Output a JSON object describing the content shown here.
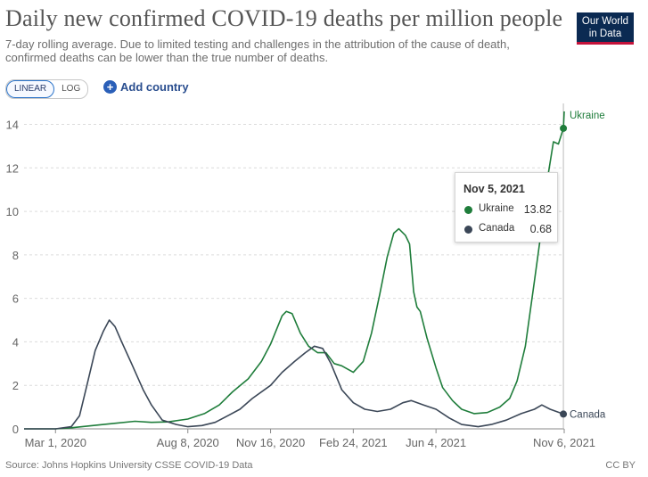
{
  "title": "Daily new confirmed COVID-19 deaths per million people",
  "subtitle": "7-day rolling average. Due to limited testing and challenges in the attribution of the cause of death, confirmed deaths can be lower than the true number of deaths.",
  "logo": {
    "line1": "Our World",
    "line2": "in Data"
  },
  "controls": {
    "linear_label": "LINEAR",
    "log_label": "LOG",
    "active_scale": "linear",
    "add_country_label": "Add country",
    "add_icon": "plus-circle-icon"
  },
  "tooltip": {
    "date": "Nov 5, 2021",
    "rows": [
      {
        "name": "Ukraine",
        "value": "13.82"
      },
      {
        "name": "Canada",
        "value": "0.68"
      }
    ]
  },
  "footer": {
    "source": "Source: Johns Hopkins University CSSE COVID-19 Data",
    "license": "CC BY"
  },
  "chart_data": {
    "type": "line",
    "title": "Daily new confirmed COVID-19 deaths per million people",
    "ylim": [
      0,
      14.8
    ],
    "yticks": [
      0,
      2,
      4,
      6,
      8,
      10,
      12,
      14
    ],
    "xlim": [
      "2020-01-23",
      "2021-11-06"
    ],
    "xticks": [
      {
        "date": "2020-03-01",
        "label": "Mar 1, 2020"
      },
      {
        "date": "2020-08-08",
        "label": "Aug 8, 2020"
      },
      {
        "date": "2020-11-16",
        "label": "Nov 16, 2020"
      },
      {
        "date": "2021-02-24",
        "label": "Feb 24, 2021"
      },
      {
        "date": "2021-06-04",
        "label": "Jun 4, 2021"
      },
      {
        "date": "2021-11-06",
        "label": "Nov 6, 2021"
      }
    ],
    "grid": true,
    "legend": "inline-right",
    "series": [
      {
        "name": "Ukraine",
        "color": "#1f7d3b",
        "points": [
          [
            "2020-01-23",
            0
          ],
          [
            "2020-03-01",
            0
          ],
          [
            "2020-03-20",
            0.05
          ],
          [
            "2020-04-15",
            0.15
          ],
          [
            "2020-05-10",
            0.25
          ],
          [
            "2020-06-05",
            0.35
          ],
          [
            "2020-06-25",
            0.3
          ],
          [
            "2020-07-15",
            0.32
          ],
          [
            "2020-08-08",
            0.45
          ],
          [
            "2020-08-28",
            0.7
          ],
          [
            "2020-09-15",
            1.1
          ],
          [
            "2020-10-01",
            1.7
          ],
          [
            "2020-10-20",
            2.3
          ],
          [
            "2020-11-05",
            3.1
          ],
          [
            "2020-11-16",
            3.9
          ],
          [
            "2020-11-30",
            5.2
          ],
          [
            "2020-12-05",
            5.4
          ],
          [
            "2020-12-12",
            5.3
          ],
          [
            "2020-12-22",
            4.4
          ],
          [
            "2021-01-01",
            3.8
          ],
          [
            "2021-01-12",
            3.5
          ],
          [
            "2021-01-22",
            3.5
          ],
          [
            "2021-02-01",
            3.0
          ],
          [
            "2021-02-10",
            2.9
          ],
          [
            "2021-02-24",
            2.6
          ],
          [
            "2021-03-08",
            3.1
          ],
          [
            "2021-03-18",
            4.4
          ],
          [
            "2021-03-28",
            6.2
          ],
          [
            "2021-04-06",
            7.9
          ],
          [
            "2021-04-14",
            9.0
          ],
          [
            "2021-04-20",
            9.2
          ],
          [
            "2021-04-28",
            8.9
          ],
          [
            "2021-05-03",
            8.5
          ],
          [
            "2021-05-08",
            6.3
          ],
          [
            "2021-05-12",
            5.6
          ],
          [
            "2021-05-16",
            5.4
          ],
          [
            "2021-05-24",
            4.2
          ],
          [
            "2021-06-04",
            2.8
          ],
          [
            "2021-06-12",
            1.9
          ],
          [
            "2021-06-24",
            1.3
          ],
          [
            "2021-07-05",
            0.9
          ],
          [
            "2021-07-20",
            0.7
          ],
          [
            "2021-08-05",
            0.75
          ],
          [
            "2021-08-20",
            1.0
          ],
          [
            "2021-09-01",
            1.4
          ],
          [
            "2021-09-10",
            2.2
          ],
          [
            "2021-09-20",
            3.8
          ],
          [
            "2021-10-01",
            6.8
          ],
          [
            "2021-10-10",
            9.3
          ],
          [
            "2021-10-18",
            11.8
          ],
          [
            "2021-10-24",
            13.2
          ],
          [
            "2021-10-30",
            13.1
          ],
          [
            "2021-11-05",
            13.82
          ],
          [
            "2021-11-06",
            14.6
          ]
        ]
      },
      {
        "name": "Canada",
        "color": "#3b4757",
        "points": [
          [
            "2020-01-23",
            0
          ],
          [
            "2020-03-01",
            0
          ],
          [
            "2020-03-20",
            0.1
          ],
          [
            "2020-03-30",
            0.6
          ],
          [
            "2020-04-08",
            2.0
          ],
          [
            "2020-04-18",
            3.6
          ],
          [
            "2020-04-28",
            4.5
          ],
          [
            "2020-05-05",
            5.0
          ],
          [
            "2020-05-12",
            4.7
          ],
          [
            "2020-05-20",
            4.0
          ],
          [
            "2020-06-01",
            3.0
          ],
          [
            "2020-06-15",
            1.8
          ],
          [
            "2020-06-25",
            1.1
          ],
          [
            "2020-07-08",
            0.4
          ],
          [
            "2020-07-25",
            0.2
          ],
          [
            "2020-08-08",
            0.1
          ],
          [
            "2020-08-25",
            0.15
          ],
          [
            "2020-09-10",
            0.3
          ],
          [
            "2020-09-25",
            0.6
          ],
          [
            "2020-10-10",
            0.9
          ],
          [
            "2020-10-25",
            1.4
          ],
          [
            "2020-11-16",
            2.0
          ],
          [
            "2020-11-30",
            2.6
          ],
          [
            "2020-12-15",
            3.1
          ],
          [
            "2020-12-28",
            3.5
          ],
          [
            "2021-01-08",
            3.8
          ],
          [
            "2021-01-18",
            3.7
          ],
          [
            "2021-01-28",
            3.0
          ],
          [
            "2021-02-10",
            1.8
          ],
          [
            "2021-02-24",
            1.2
          ],
          [
            "2021-03-10",
            0.9
          ],
          [
            "2021-03-25",
            0.8
          ],
          [
            "2021-04-10",
            0.9
          ],
          [
            "2021-04-25",
            1.2
          ],
          [
            "2021-05-05",
            1.3
          ],
          [
            "2021-05-20",
            1.1
          ],
          [
            "2021-06-04",
            0.9
          ],
          [
            "2021-06-20",
            0.5
          ],
          [
            "2021-07-05",
            0.2
          ],
          [
            "2021-07-25",
            0.1
          ],
          [
            "2021-08-10",
            0.2
          ],
          [
            "2021-08-28",
            0.4
          ],
          [
            "2021-09-15",
            0.7
          ],
          [
            "2021-10-01",
            0.9
          ],
          [
            "2021-10-10",
            1.1
          ],
          [
            "2021-10-20",
            0.9
          ],
          [
            "2021-11-05",
            0.68
          ],
          [
            "2021-11-06",
            0.68
          ]
        ]
      }
    ],
    "highlight": {
      "date": "2021-11-05",
      "values": {
        "Ukraine": 13.82,
        "Canada": 0.68
      }
    }
  }
}
